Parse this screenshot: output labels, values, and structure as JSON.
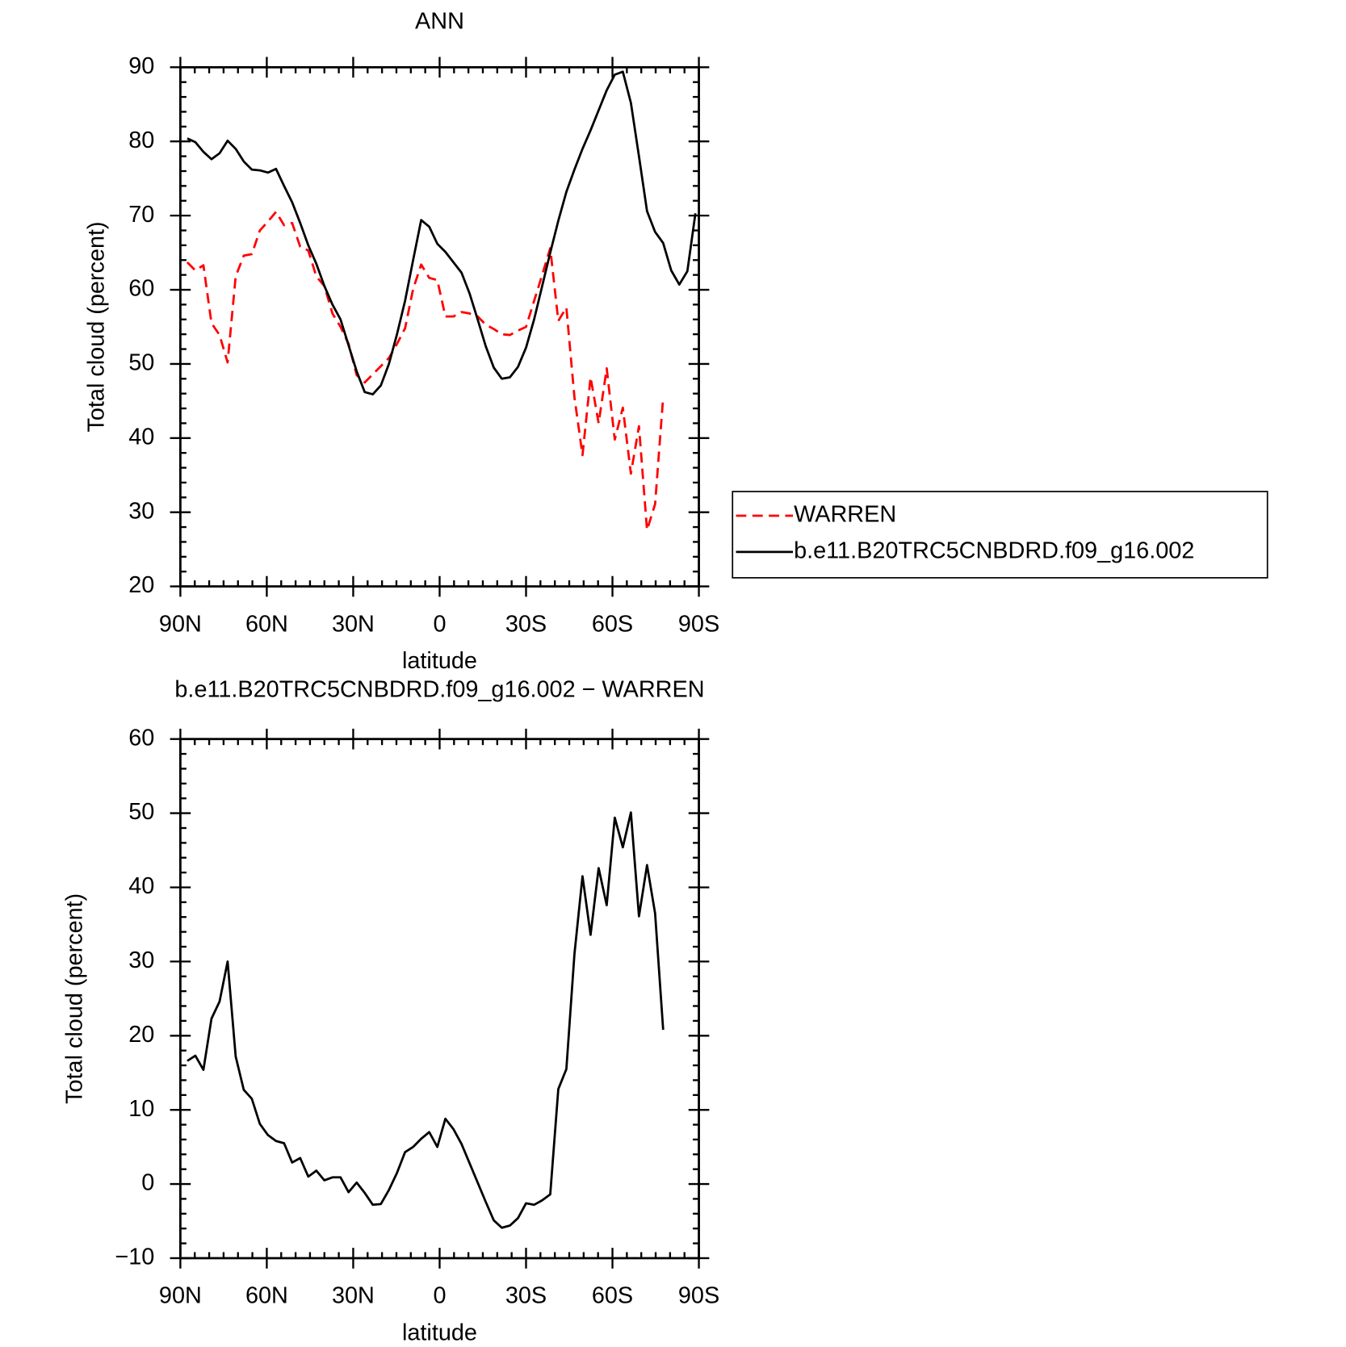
{
  "chart_data": [
    {
      "type": "line",
      "title": "ANN",
      "xlabel": "latitude",
      "ylabel": "Total cloud (percent)",
      "xlim": [
        90,
        -90
      ],
      "ylim": [
        20,
        90
      ],
      "xticks": [
        {
          "value": 90,
          "label": "90N"
        },
        {
          "value": 60,
          "label": "60N"
        },
        {
          "value": 30,
          "label": "30N"
        },
        0,
        {
          "value": -30,
          "label": "30S"
        },
        {
          "value": -60,
          "label": "60S"
        },
        {
          "value": -90,
          "label": "90S"
        }
      ],
      "yticks": [
        20,
        30,
        40,
        50,
        60,
        70,
        80,
        90
      ],
      "legend": "right",
      "x": [
        87.6,
        84.8,
        82,
        79.2,
        76.4,
        73.6,
        70.8,
        68,
        65.2,
        62.4,
        59.6,
        56.8,
        54,
        51.2,
        48.4,
        45.6,
        42.8,
        40,
        37.2,
        34.4,
        31.6,
        28.8,
        26,
        23.2,
        20.4,
        17.6,
        14.8,
        12,
        9.2,
        6.4,
        3.6,
        0.8,
        -2,
        -4.8,
        -7.6,
        -10.4,
        -13.2,
        -16,
        -18.8,
        -21.6,
        -24.4,
        -27.2,
        -30,
        -32.8,
        -35.6,
        -38.4,
        -41.2,
        -44,
        -46.8,
        -49.6,
        -52.4,
        -55.2,
        -58,
        -60.8,
        -63.6,
        -66.4,
        -69.2,
        -72,
        -74.8,
        -77.6,
        -80.4,
        -83.2,
        -86,
        -88.8
      ],
      "series": [
        {
          "name": "WARREN",
          "color": "#ff0000",
          "style": "dashed",
          "values": [
            63.7,
            62.6,
            63.3,
            55.5,
            53.9,
            50.2,
            61.8,
            64.6,
            64.8,
            68,
            69.2,
            70.5,
            68.7,
            69,
            65.8,
            65.3,
            61.8,
            60.5,
            56.8,
            55,
            52.7,
            48.5,
            47.5,
            48.6,
            49.7,
            50.8,
            52.7,
            54.8,
            60.1,
            63.4,
            61.6,
            61.3,
            56.4,
            56.4,
            57,
            56.8,
            56.4,
            55.3,
            54.7,
            54,
            53.9,
            54.5,
            55,
            58.5,
            62,
            65.6,
            55.8,
            57.6,
            45.5,
            37.7,
            48.2,
            42,
            49.4,
            39.8,
            44.1,
            35.2,
            41.6,
            27.6,
            31.1,
            45.5,
            null,
            null,
            null,
            null
          ]
        },
        {
          "name": "b.e11.B20TRC5CNBDRD.f09_g16.002",
          "color": "#000000",
          "style": "solid",
          "values": [
            80.4,
            79.9,
            78.6,
            77.6,
            78.4,
            80.1,
            79,
            77.3,
            76.2,
            76.1,
            75.8,
            76.3,
            74,
            71.8,
            69,
            66,
            63.5,
            60.5,
            58,
            56,
            52.5,
            49,
            46.2,
            45.9,
            47.1,
            50,
            54,
            58.5,
            64,
            69.4,
            68.5,
            66.2,
            65.1,
            63.7,
            62.3,
            59.5,
            56,
            52.4,
            49.5,
            48,
            48.2,
            49.6,
            52.2,
            56,
            60.5,
            65,
            69.3,
            73.2,
            76.2,
            79,
            81.5,
            84.2,
            86.9,
            89,
            89.4,
            85.2,
            78,
            70.6,
            67.8,
            66.3,
            62.6,
            60.7,
            62.5,
            70.3
          ]
        }
      ]
    },
    {
      "type": "line",
      "title": "b.e11.B20TRC5CNBDRD.f09_g16.002 − WARREN",
      "xlabel": "latitude",
      "ylabel": "Total cloud (percent)",
      "xlim": [
        90,
        -90
      ],
      "ylim": [
        -10,
        60
      ],
      "xticks": [
        {
          "value": 90,
          "label": "90N"
        },
        {
          "value": 60,
          "label": "60N"
        },
        {
          "value": 30,
          "label": "30N"
        },
        0,
        {
          "value": -30,
          "label": "30S"
        },
        {
          "value": -60,
          "label": "60S"
        },
        {
          "value": -90,
          "label": "90S"
        }
      ],
      "yticks": [
        {
          "value": -10,
          "label": "−10"
        },
        0,
        10,
        20,
        30,
        40,
        50,
        60
      ],
      "x": [
        87.6,
        84.8,
        82,
        79.2,
        76.4,
        73.6,
        70.8,
        68,
        65.2,
        62.4,
        59.6,
        56.8,
        54,
        51.2,
        48.4,
        45.6,
        42.8,
        40,
        37.2,
        34.4,
        31.6,
        28.8,
        26,
        23.2,
        20.4,
        17.6,
        14.8,
        12,
        9.2,
        6.4,
        3.6,
        0.8,
        -2,
        -4.8,
        -7.6,
        -10.4,
        -13.2,
        -16,
        -18.8,
        -21.6,
        -24.4,
        -27.2,
        -30,
        -32.8,
        -35.6,
        -38.4,
        -41.2,
        -44,
        -46.8,
        -49.6,
        -52.4,
        -55.2,
        -58,
        -60.8,
        -63.6,
        -66.4,
        -69.2,
        -72,
        -74.8,
        -77.6,
        -80.4,
        -83.2,
        -86,
        -88.8
      ],
      "series": [
        {
          "color": "#000000",
          "style": "solid",
          "values": [
            16.6,
            17.3,
            15.4,
            22.3,
            24.6,
            30,
            17.2,
            12.7,
            11.5,
            8.1,
            6.6,
            5.8,
            5.5,
            2.9,
            3.5,
            1,
            1.8,
            0.5,
            0.9,
            0.9,
            -1.1,
            0.2,
            -1.2,
            -2.8,
            -2.7,
            -0.8,
            1.5,
            4.3,
            5,
            6.1,
            7,
            5,
            8.8,
            7.4,
            5.4,
            2.8,
            0.2,
            -2.4,
            -4.9,
            -5.9,
            -5.6,
            -4.6,
            -2.6,
            -2.8,
            -2.2,
            -1.4,
            12.8,
            15.5,
            31,
            41.5,
            33.6,
            42.6,
            37.6,
            49.4,
            45.4,
            50.1,
            36.1,
            43,
            36.5,
            20.8,
            null,
            null,
            null,
            null
          ]
        }
      ]
    }
  ]
}
